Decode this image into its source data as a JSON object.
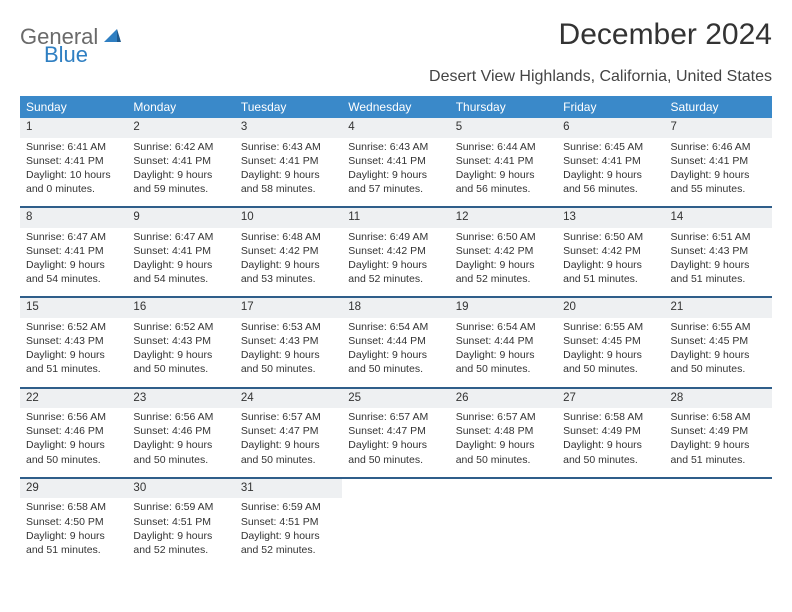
{
  "logo": {
    "word1": "General",
    "word2": "Blue",
    "word1_color": "#6a6a6a",
    "word2_color": "#2f7fc2"
  },
  "title": "December 2024",
  "location": "Desert View Highlands, California, United States",
  "colors": {
    "header_bg": "#3a89c9",
    "header_fg": "#ffffff",
    "daynum_bg": "#eef0f2",
    "row_divider": "#2f5e8a",
    "text": "#333333",
    "page_bg": "#ffffff"
  },
  "fonts": {
    "title_size": 30,
    "location_size": 16,
    "header_size": 12,
    "daynum_size": 11.5,
    "body_size": 10.5
  },
  "weekdays": [
    "Sunday",
    "Monday",
    "Tuesday",
    "Wednesday",
    "Thursday",
    "Friday",
    "Saturday"
  ],
  "weeks": [
    [
      {
        "day": "1",
        "sunrise": "Sunrise: 6:41 AM",
        "sunset": "Sunset: 4:41 PM",
        "daylight": "Daylight: 10 hours and 0 minutes."
      },
      {
        "day": "2",
        "sunrise": "Sunrise: 6:42 AM",
        "sunset": "Sunset: 4:41 PM",
        "daylight": "Daylight: 9 hours and 59 minutes."
      },
      {
        "day": "3",
        "sunrise": "Sunrise: 6:43 AM",
        "sunset": "Sunset: 4:41 PM",
        "daylight": "Daylight: 9 hours and 58 minutes."
      },
      {
        "day": "4",
        "sunrise": "Sunrise: 6:43 AM",
        "sunset": "Sunset: 4:41 PM",
        "daylight": "Daylight: 9 hours and 57 minutes."
      },
      {
        "day": "5",
        "sunrise": "Sunrise: 6:44 AM",
        "sunset": "Sunset: 4:41 PM",
        "daylight": "Daylight: 9 hours and 56 minutes."
      },
      {
        "day": "6",
        "sunrise": "Sunrise: 6:45 AM",
        "sunset": "Sunset: 4:41 PM",
        "daylight": "Daylight: 9 hours and 56 minutes."
      },
      {
        "day": "7",
        "sunrise": "Sunrise: 6:46 AM",
        "sunset": "Sunset: 4:41 PM",
        "daylight": "Daylight: 9 hours and 55 minutes."
      }
    ],
    [
      {
        "day": "8",
        "sunrise": "Sunrise: 6:47 AM",
        "sunset": "Sunset: 4:41 PM",
        "daylight": "Daylight: 9 hours and 54 minutes."
      },
      {
        "day": "9",
        "sunrise": "Sunrise: 6:47 AM",
        "sunset": "Sunset: 4:41 PM",
        "daylight": "Daylight: 9 hours and 54 minutes."
      },
      {
        "day": "10",
        "sunrise": "Sunrise: 6:48 AM",
        "sunset": "Sunset: 4:42 PM",
        "daylight": "Daylight: 9 hours and 53 minutes."
      },
      {
        "day": "11",
        "sunrise": "Sunrise: 6:49 AM",
        "sunset": "Sunset: 4:42 PM",
        "daylight": "Daylight: 9 hours and 52 minutes."
      },
      {
        "day": "12",
        "sunrise": "Sunrise: 6:50 AM",
        "sunset": "Sunset: 4:42 PM",
        "daylight": "Daylight: 9 hours and 52 minutes."
      },
      {
        "day": "13",
        "sunrise": "Sunrise: 6:50 AM",
        "sunset": "Sunset: 4:42 PM",
        "daylight": "Daylight: 9 hours and 51 minutes."
      },
      {
        "day": "14",
        "sunrise": "Sunrise: 6:51 AM",
        "sunset": "Sunset: 4:43 PM",
        "daylight": "Daylight: 9 hours and 51 minutes."
      }
    ],
    [
      {
        "day": "15",
        "sunrise": "Sunrise: 6:52 AM",
        "sunset": "Sunset: 4:43 PM",
        "daylight": "Daylight: 9 hours and 51 minutes."
      },
      {
        "day": "16",
        "sunrise": "Sunrise: 6:52 AM",
        "sunset": "Sunset: 4:43 PM",
        "daylight": "Daylight: 9 hours and 50 minutes."
      },
      {
        "day": "17",
        "sunrise": "Sunrise: 6:53 AM",
        "sunset": "Sunset: 4:43 PM",
        "daylight": "Daylight: 9 hours and 50 minutes."
      },
      {
        "day": "18",
        "sunrise": "Sunrise: 6:54 AM",
        "sunset": "Sunset: 4:44 PM",
        "daylight": "Daylight: 9 hours and 50 minutes."
      },
      {
        "day": "19",
        "sunrise": "Sunrise: 6:54 AM",
        "sunset": "Sunset: 4:44 PM",
        "daylight": "Daylight: 9 hours and 50 minutes."
      },
      {
        "day": "20",
        "sunrise": "Sunrise: 6:55 AM",
        "sunset": "Sunset: 4:45 PM",
        "daylight": "Daylight: 9 hours and 50 minutes."
      },
      {
        "day": "21",
        "sunrise": "Sunrise: 6:55 AM",
        "sunset": "Sunset: 4:45 PM",
        "daylight": "Daylight: 9 hours and 50 minutes."
      }
    ],
    [
      {
        "day": "22",
        "sunrise": "Sunrise: 6:56 AM",
        "sunset": "Sunset: 4:46 PM",
        "daylight": "Daylight: 9 hours and 50 minutes."
      },
      {
        "day": "23",
        "sunrise": "Sunrise: 6:56 AM",
        "sunset": "Sunset: 4:46 PM",
        "daylight": "Daylight: 9 hours and 50 minutes."
      },
      {
        "day": "24",
        "sunrise": "Sunrise: 6:57 AM",
        "sunset": "Sunset: 4:47 PM",
        "daylight": "Daylight: 9 hours and 50 minutes."
      },
      {
        "day": "25",
        "sunrise": "Sunrise: 6:57 AM",
        "sunset": "Sunset: 4:47 PM",
        "daylight": "Daylight: 9 hours and 50 minutes."
      },
      {
        "day": "26",
        "sunrise": "Sunrise: 6:57 AM",
        "sunset": "Sunset: 4:48 PM",
        "daylight": "Daylight: 9 hours and 50 minutes."
      },
      {
        "day": "27",
        "sunrise": "Sunrise: 6:58 AM",
        "sunset": "Sunset: 4:49 PM",
        "daylight": "Daylight: 9 hours and 50 minutes."
      },
      {
        "day": "28",
        "sunrise": "Sunrise: 6:58 AM",
        "sunset": "Sunset: 4:49 PM",
        "daylight": "Daylight: 9 hours and 51 minutes."
      }
    ],
    [
      {
        "day": "29",
        "sunrise": "Sunrise: 6:58 AM",
        "sunset": "Sunset: 4:50 PM",
        "daylight": "Daylight: 9 hours and 51 minutes."
      },
      {
        "day": "30",
        "sunrise": "Sunrise: 6:59 AM",
        "sunset": "Sunset: 4:51 PM",
        "daylight": "Daylight: 9 hours and 52 minutes."
      },
      {
        "day": "31",
        "sunrise": "Sunrise: 6:59 AM",
        "sunset": "Sunset: 4:51 PM",
        "daylight": "Daylight: 9 hours and 52 minutes."
      },
      null,
      null,
      null,
      null
    ]
  ]
}
